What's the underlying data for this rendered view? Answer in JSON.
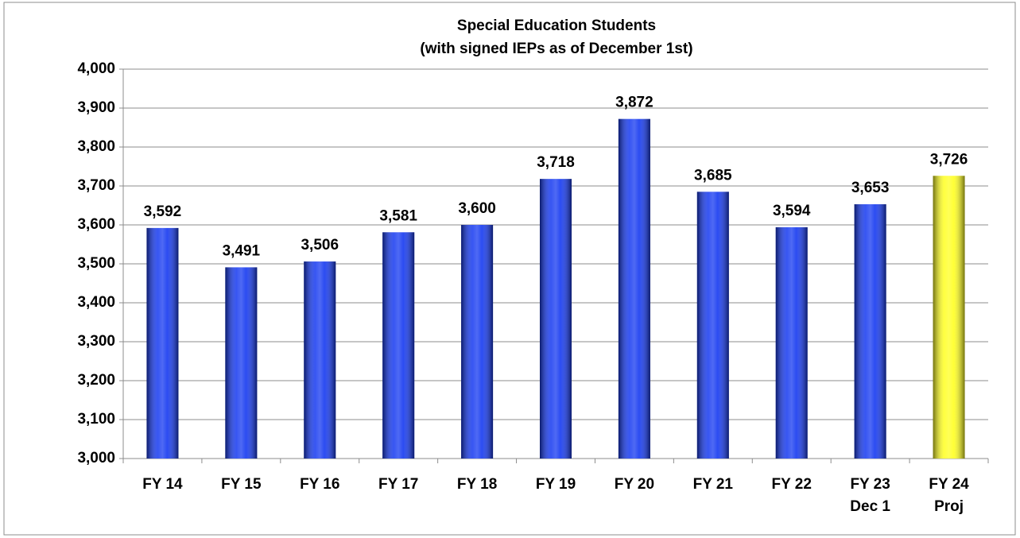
{
  "chart_data": {
    "type": "bar",
    "title": [
      "Special Education Students",
      "(with signed IEPs as of December 1st)"
    ],
    "categories": [
      "FY 14",
      "FY 15",
      "FY 16",
      "FY 17",
      "FY 18",
      "FY 19",
      "FY 20",
      "FY 21",
      "FY 22",
      "FY 23\nDec 1",
      "FY 24\nProj"
    ],
    "values": [
      3592,
      3491,
      3506,
      3581,
      3600,
      3718,
      3872,
      3685,
      3594,
      3653,
      3726
    ],
    "value_labels": [
      "3,592",
      "3,491",
      "3,506",
      "3,581",
      "3,600",
      "3,718",
      "3,872",
      "3,685",
      "3,594",
      "3,653",
      "3,726"
    ],
    "colors": [
      "#1438f0",
      "#1438f0",
      "#1438f0",
      "#1438f0",
      "#1438f0",
      "#1438f0",
      "#1438f0",
      "#1438f0",
      "#1438f0",
      "#1438f0",
      "#ffff20"
    ],
    "ylim": [
      3000,
      4000
    ],
    "yticks": [
      {
        "value": 3000,
        "label": "3,000"
      },
      {
        "value": 3100,
        "label": "3,100"
      },
      {
        "value": 3200,
        "label": "3,200"
      },
      {
        "value": 3300,
        "label": "3,300"
      },
      {
        "value": 3400,
        "label": "3,400"
      },
      {
        "value": 3500,
        "label": "3,500"
      },
      {
        "value": 3600,
        "label": "3,600"
      },
      {
        "value": 3700,
        "label": "3,700"
      },
      {
        "value": 3800,
        "label": "3,800"
      },
      {
        "value": 3900,
        "label": "3,900"
      },
      {
        "value": 4000,
        "label": "4,000"
      }
    ],
    "grid": true
  }
}
